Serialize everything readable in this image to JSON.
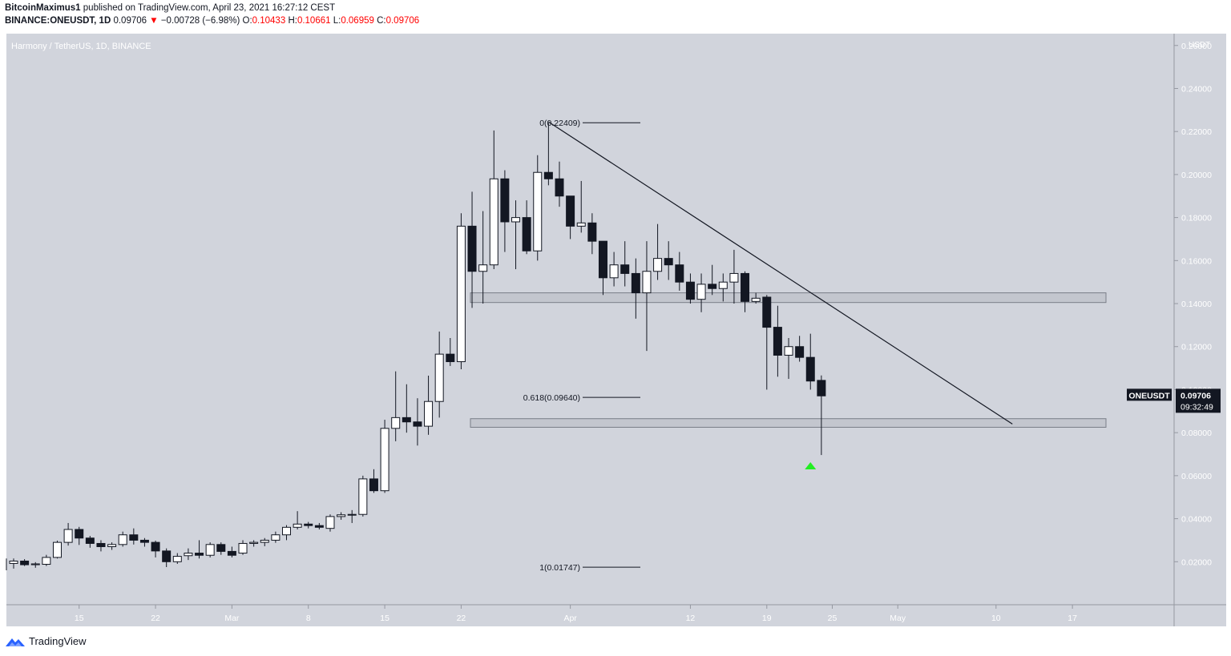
{
  "header": {
    "publisher": "BitcoinMaximus1",
    "published_text": " published on TradingView.com, April 23, 2021 16:27:12 CEST",
    "symbol": "BINANCE:ONEUSDT, 1D",
    "last": "0.09706",
    "arrow": "▼",
    "change": "−0.00728 (−6.98%)",
    "o_label": "O:",
    "o_value": "0.10433",
    "h_label": "H:",
    "h_value": "0.10661",
    "l_label": "L:",
    "l_value": "0.06959",
    "c_label": "C:",
    "c_value": "0.09706"
  },
  "footer": {
    "brand": "TradingView"
  },
  "colors": {
    "chart_bg": "#d1d4dc",
    "up_body": "#ffffff",
    "down_body": "#131722",
    "zone_fill": "#c3c6ce",
    "zone_stroke": "#7a7e88",
    "arrow_green": "#22ee22",
    "label_bg": "#131722"
  },
  "chart_data": {
    "type": "candlestick",
    "title": "Harmony / TetherUS, 1D, BINANCE",
    "axis_unit": "USDT",
    "ylim": [
      0.0,
      0.2655
    ],
    "y_ticks": [
      0.02,
      0.04,
      0.06,
      0.08,
      0.1,
      0.12,
      0.14,
      0.16,
      0.18,
      0.2,
      0.22,
      0.24,
      0.26
    ],
    "y_tick_labels": [
      "0.02000",
      "0.04000",
      "0.06000",
      "0.08000",
      "0.10000",
      "0.12000",
      "0.14000",
      "0.16000",
      "0.18000",
      "0.20000",
      "0.22000",
      "0.24000",
      "0.26000"
    ],
    "x_ticks": [
      {
        "i": 6,
        "label": "15"
      },
      {
        "i": 13,
        "label": "22"
      },
      {
        "i": 20,
        "label": "Mar"
      },
      {
        "i": 27,
        "label": "8"
      },
      {
        "i": 34,
        "label": "15"
      },
      {
        "i": 41,
        "label": "22"
      },
      {
        "i": 51,
        "label": "Apr"
      },
      {
        "i": 62,
        "label": "12"
      },
      {
        "i": 69,
        "label": "19"
      },
      {
        "i": 75,
        "label": "25"
      },
      {
        "i": 81,
        "label": "May"
      },
      {
        "i": 90,
        "label": "10"
      },
      {
        "i": 97,
        "label": "17"
      }
    ],
    "candles": [
      [
        0.0192,
        0.0215,
        0.0168,
        0.0203
      ],
      [
        0.0203,
        0.0212,
        0.018,
        0.0186
      ],
      [
        0.0186,
        0.0198,
        0.0172,
        0.019
      ],
      [
        0.0188,
        0.0232,
        0.018,
        0.022
      ],
      [
        0.022,
        0.0298,
        0.0215,
        0.029
      ],
      [
        0.029,
        0.038,
        0.0275,
        0.035
      ],
      [
        0.035,
        0.0362,
        0.0278,
        0.031
      ],
      [
        0.031,
        0.032,
        0.0265,
        0.0285
      ],
      [
        0.0285,
        0.03,
        0.0248,
        0.027
      ],
      [
        0.027,
        0.029,
        0.0255,
        0.028
      ],
      [
        0.028,
        0.034,
        0.027,
        0.0325
      ],
      [
        0.0325,
        0.0355,
        0.028,
        0.03
      ],
      [
        0.03,
        0.031,
        0.027,
        0.029
      ],
      [
        0.029,
        0.0298,
        0.022,
        0.025
      ],
      [
        0.025,
        0.0262,
        0.0175,
        0.02
      ],
      [
        0.02,
        0.024,
        0.019,
        0.0225
      ],
      [
        0.0228,
        0.0262,
        0.0208,
        0.024
      ],
      [
        0.024,
        0.03,
        0.0215,
        0.023
      ],
      [
        0.023,
        0.029,
        0.022,
        0.028
      ],
      [
        0.028,
        0.029,
        0.0232,
        0.0248
      ],
      [
        0.0248,
        0.027,
        0.022,
        0.023
      ],
      [
        0.024,
        0.03,
        0.0232,
        0.0285
      ],
      [
        0.0285,
        0.03,
        0.027,
        0.029
      ],
      [
        0.029,
        0.031,
        0.0272,
        0.03
      ],
      [
        0.03,
        0.034,
        0.0288,
        0.0325
      ],
      [
        0.0325,
        0.037,
        0.03,
        0.036
      ],
      [
        0.036,
        0.0435,
        0.035,
        0.0375
      ],
      [
        0.0375,
        0.0385,
        0.0355,
        0.0368
      ],
      [
        0.0368,
        0.038,
        0.035,
        0.036
      ],
      [
        0.0355,
        0.042,
        0.034,
        0.041
      ],
      [
        0.041,
        0.043,
        0.0395,
        0.0418
      ],
      [
        0.0418,
        0.044,
        0.038,
        0.042
      ],
      [
        0.042,
        0.06,
        0.041,
        0.0585
      ],
      [
        0.0585,
        0.063,
        0.052,
        0.053
      ],
      [
        0.053,
        0.086,
        0.052,
        0.082
      ],
      [
        0.082,
        0.1085,
        0.076,
        0.087
      ],
      [
        0.087,
        0.1025,
        0.08,
        0.085
      ],
      [
        0.085,
        0.096,
        0.074,
        0.083
      ],
      [
        0.083,
        0.1065,
        0.079,
        0.0945
      ],
      [
        0.0945,
        0.127,
        0.087,
        0.1165
      ],
      [
        0.1165,
        0.124,
        0.111,
        0.113
      ],
      [
        0.113,
        0.182,
        0.1095,
        0.176
      ],
      [
        0.176,
        0.192,
        0.138,
        0.155
      ],
      [
        0.155,
        0.183,
        0.14,
        0.158
      ],
      [
        0.158,
        0.2205,
        0.156,
        0.198
      ],
      [
        0.198,
        0.202,
        0.164,
        0.178
      ],
      [
        0.178,
        0.188,
        0.156,
        0.18
      ],
      [
        0.18,
        0.188,
        0.163,
        0.1645
      ],
      [
        0.1645,
        0.209,
        0.16,
        0.201
      ],
      [
        0.201,
        0.224,
        0.195,
        0.198
      ],
      [
        0.198,
        0.206,
        0.185,
        0.19
      ],
      [
        0.19,
        0.19,
        0.17,
        0.176
      ],
      [
        0.176,
        0.197,
        0.173,
        0.1775
      ],
      [
        0.1775,
        0.182,
        0.163,
        0.169
      ],
      [
        0.169,
        0.169,
        0.144,
        0.152
      ],
      [
        0.152,
        0.164,
        0.148,
        0.158
      ],
      [
        0.158,
        0.169,
        0.148,
        0.154
      ],
      [
        0.154,
        0.161,
        0.133,
        0.145
      ],
      [
        0.145,
        0.169,
        0.118,
        0.155
      ],
      [
        0.155,
        0.177,
        0.151,
        0.161
      ],
      [
        0.161,
        0.169,
        0.151,
        0.158
      ],
      [
        0.158,
        0.164,
        0.146,
        0.15
      ],
      [
        0.15,
        0.154,
        0.14,
        0.142
      ],
      [
        0.142,
        0.154,
        0.136,
        0.149
      ],
      [
        0.149,
        0.158,
        0.144,
        0.147
      ],
      [
        0.147,
        0.154,
        0.141,
        0.15
      ],
      [
        0.15,
        0.165,
        0.14,
        0.154
      ],
      [
        0.154,
        0.155,
        0.136,
        0.141
      ],
      [
        0.141,
        0.145,
        0.14,
        0.1425
      ],
      [
        0.143,
        0.144,
        0.1,
        0.129
      ],
      [
        0.129,
        0.139,
        0.106,
        0.116
      ],
      [
        0.116,
        0.124,
        0.105,
        0.12
      ],
      [
        0.12,
        0.125,
        0.113,
        0.115
      ],
      [
        0.115,
        0.126,
        0.1,
        0.104
      ],
      [
        0.1043,
        0.1066,
        0.0696,
        0.0971
      ]
    ],
    "zones": [
      [
        0.1405,
        0.145
      ],
      [
        0.0825,
        0.0865
      ]
    ],
    "trendline": [
      [
        49,
        0.2245
      ],
      [
        91.5,
        0.084
      ]
    ],
    "fib_levels": [
      {
        "label": "0(0.22409)",
        "value": 0.22409
      },
      {
        "label": "0.618(0.09640)",
        "value": 0.0964
      },
      {
        "label": "1(0.01747)",
        "value": 0.01747
      }
    ],
    "last_price": {
      "symbol": "ONEUSDT",
      "price": "0.09706",
      "countdown": "09:32:49",
      "value": 0.09706
    },
    "signal": {
      "type": "up-arrow",
      "index": 73,
      "value": 0.0648
    }
  }
}
